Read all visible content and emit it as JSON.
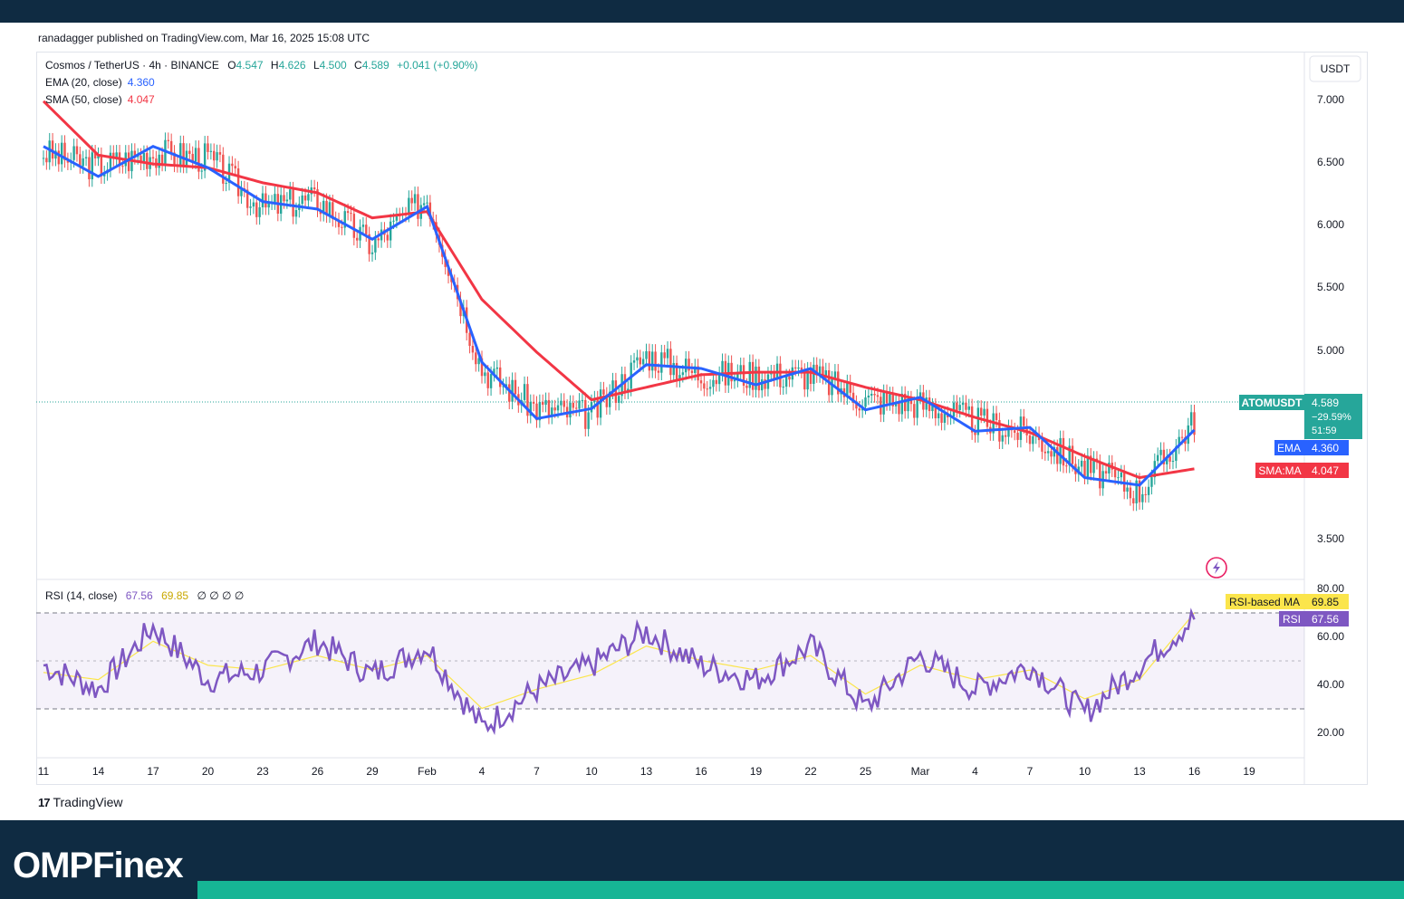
{
  "publisher_line": "ranadagger published on TradingView.com, Mar 16, 2025 15:08 UTC",
  "header": {
    "symbol": "Cosmos / TetherUS · 4h · BINANCE",
    "o_label": "O",
    "o_value": "4.547",
    "h_label": "H",
    "h_value": "4.626",
    "l_label": "L",
    "l_value": "4.500",
    "c_label": "C",
    "c_value": "4.589",
    "change": "+0.041 (+0.90%)",
    "ema_label": "EMA (20, close)",
    "ema_value": "4.360",
    "sma_label": "SMA (50, close)",
    "sma_value": "4.047"
  },
  "currency": "USDT",
  "price_axis": [
    "7.000",
    "6.500",
    "6.000",
    "5.500",
    "5.000",
    "3.500"
  ],
  "price_tags": {
    "symbol_name": "ATOMUSDT",
    "price": "4.589",
    "pct": "−29.59%",
    "countdown": "51:59",
    "ema_name": "EMA",
    "ema_value": "4.360",
    "sma_name": "SMA:MA",
    "sma_value": "4.047"
  },
  "rsi_header": {
    "label": "RSI (14, close)",
    "value": "67.56",
    "ma_value": "69.85",
    "extras": "∅ ∅ ∅ ∅"
  },
  "rsi_axis": [
    "80.00",
    "60.00",
    "40.00",
    "20.00"
  ],
  "rsi_tags": {
    "ma_name": "RSI-based MA",
    "ma_value": "69.85",
    "rsi_name": "RSI",
    "rsi_value": "67.56"
  },
  "x_axis": [
    "11",
    "14",
    "17",
    "20",
    "23",
    "26",
    "29",
    "Feb",
    "4",
    "7",
    "10",
    "13",
    "16",
    "19",
    "22",
    "25",
    "Mar",
    "4",
    "7",
    "10",
    "13",
    "16",
    "19"
  ],
  "tv_logo": "TradingView",
  "footer_brand": "OMPFinex",
  "colors": {
    "up": "#26a69a",
    "down": "#ef5350",
    "ema": "#2962ff",
    "sma": "#f23645",
    "rsi": "#7e57c2",
    "rsi_ma": "#fbe54b",
    "footer": "#0f2b42",
    "accent": "#16b595"
  },
  "chart_data": [
    {
      "type": "line",
      "title": "Cosmos / TetherUS · 4h · BINANCE",
      "ylim": [
        3.3,
        7.2
      ],
      "x": [
        "11",
        "14",
        "17",
        "20",
        "23",
        "26",
        "29",
        "Feb",
        "4",
        "7",
        "10",
        "13",
        "16",
        "19",
        "22",
        "25",
        "Mar",
        "4",
        "7",
        "10",
        "13",
        "16"
      ],
      "series": [
        {
          "name": "EMA (20, close)",
          "values": [
            6.62,
            6.38,
            6.62,
            6.45,
            6.18,
            6.12,
            5.88,
            6.14,
            4.9,
            4.45,
            4.53,
            4.88,
            4.85,
            4.72,
            4.85,
            4.52,
            4.62,
            4.35,
            4.38,
            3.98,
            3.92,
            4.36
          ]
        },
        {
          "name": "SMA (50, close)",
          "values": [
            6.98,
            6.55,
            6.48,
            6.45,
            6.33,
            6.25,
            6.05,
            6.1,
            5.4,
            4.98,
            4.6,
            4.7,
            4.8,
            4.82,
            4.82,
            4.7,
            4.6,
            4.46,
            4.34,
            4.15,
            3.98,
            4.05
          ]
        }
      ]
    },
    {
      "type": "line",
      "title": "RSI (14, close)",
      "ylim": [
        15,
        85
      ],
      "x": [
        "11",
        "14",
        "17",
        "20",
        "23",
        "26",
        "29",
        "Feb",
        "4",
        "7",
        "10",
        "13",
        "16",
        "19",
        "22",
        "25",
        "Mar",
        "4",
        "7",
        "10",
        "13",
        "16"
      ],
      "series": [
        {
          "name": "RSI",
          "values": [
            48,
            38,
            64,
            42,
            46,
            58,
            44,
            56,
            22,
            38,
            48,
            62,
            48,
            42,
            56,
            30,
            52,
            38,
            48,
            28,
            48,
            67.56
          ]
        },
        {
          "name": "RSI-based MA",
          "values": [
            45,
            42,
            58,
            48,
            46,
            52,
            46,
            52,
            30,
            38,
            44,
            56,
            50,
            46,
            52,
            36,
            48,
            42,
            46,
            34,
            42,
            69.85
          ]
        }
      ]
    }
  ]
}
